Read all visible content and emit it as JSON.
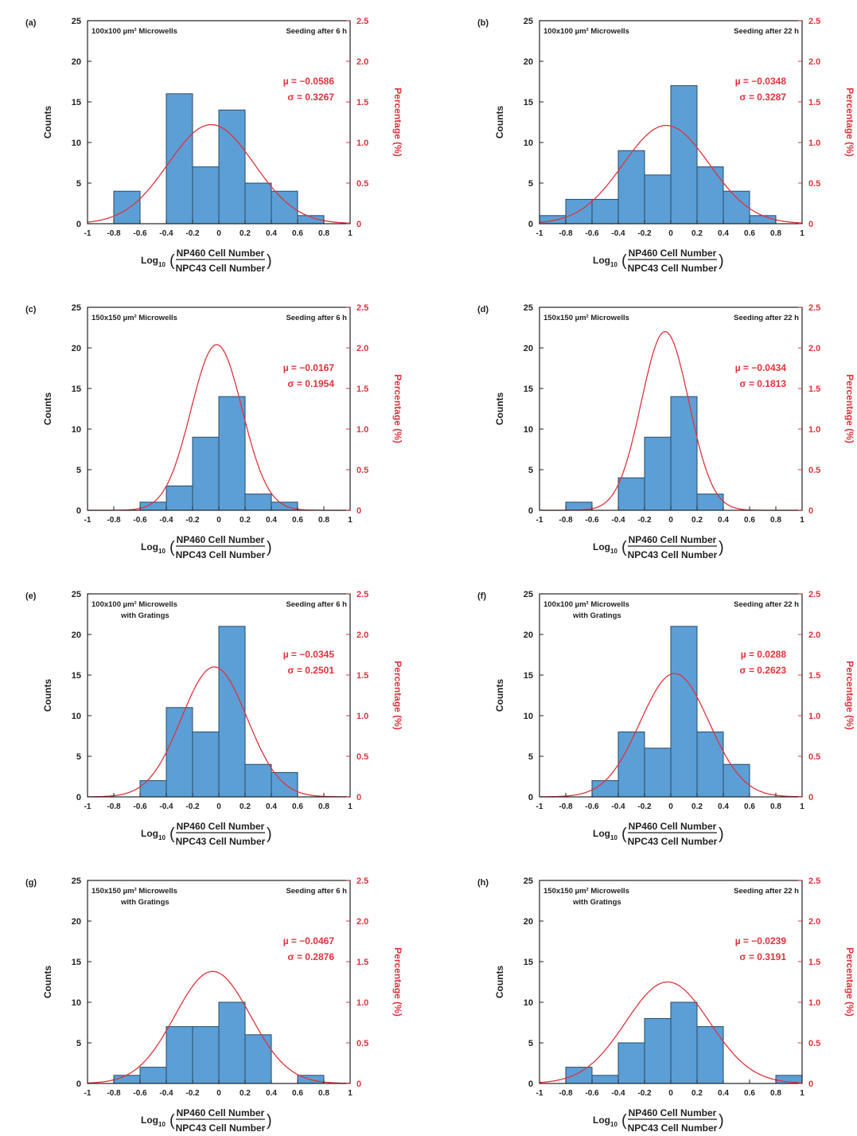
{
  "figure": {
    "count_ticks": [
      "0",
      "5",
      "10",
      "15",
      "20",
      "25"
    ],
    "percentage_ticks": [
      "0",
      "0.5",
      "1.0",
      "1.5",
      "2.0",
      "2.5"
    ],
    "x_ticks": [
      "-1",
      "-0.8",
      "-0.6",
      "-0.4",
      "-0.2",
      "0",
      "0.2",
      "0.4",
      "0.6",
      "0.8",
      "1"
    ],
    "ylabel_left": "Counts",
    "ylabel_right": "Percentage (%)",
    "xlabel_prefix": "Log",
    "xlabel_sub": "10",
    "xlabel_numerator": "NP460 Cell Number",
    "xlabel_denominator": "NPC43 Cell Number",
    "colors": {
      "bar_fill": "#5b9fd6",
      "bar_edge": "#2a4a66",
      "curve": "#e0333c",
      "axis": "#222222"
    }
  },
  "chart_data": [
    {
      "type": "bar",
      "panel": "(a)",
      "well": "100x100 µm² Microwells",
      "well_sub": "",
      "seeding": "Seeding after 6 h",
      "mu": "µ = −0.0586",
      "sigma": "σ = 0.3267",
      "bin_edges": [
        -1,
        -0.8,
        -0.6,
        -0.4,
        -0.2,
        0,
        0.2,
        0.4,
        0.6,
        0.8,
        1
      ],
      "counts": [
        0,
        4,
        0,
        16,
        7,
        14,
        5,
        4,
        1,
        0
      ],
      "fit": {
        "mean": -0.0586,
        "sd": 0.3267,
        "peak_percentage": 1.22
      },
      "xlim": [
        -1,
        1
      ],
      "ylim_counts": [
        0,
        25
      ],
      "ylim_percentage": [
        0,
        2.5
      ]
    },
    {
      "type": "bar",
      "panel": "(b)",
      "well": "100x100 µm² Microwells",
      "well_sub": "",
      "seeding": "Seeding after 22 h",
      "mu": "µ = −0.0348",
      "sigma": "σ = 0.3287",
      "bin_edges": [
        -1,
        -0.8,
        -0.6,
        -0.4,
        -0.2,
        0,
        0.2,
        0.4,
        0.6,
        0.8,
        1
      ],
      "counts": [
        1,
        3,
        3,
        9,
        6,
        17,
        7,
        4,
        1,
        0
      ],
      "fit": {
        "mean": -0.0348,
        "sd": 0.3287,
        "peak_percentage": 1.21
      },
      "xlim": [
        -1,
        1
      ],
      "ylim_counts": [
        0,
        25
      ],
      "ylim_percentage": [
        0,
        2.5
      ]
    },
    {
      "type": "bar",
      "panel": "(c)",
      "well": "150x150 µm² Microwells",
      "well_sub": "",
      "seeding": "Seeding after 6 h",
      "mu": "µ = −0.0167",
      "sigma": "σ = 0.1954",
      "bin_edges": [
        -1,
        -0.8,
        -0.6,
        -0.4,
        -0.2,
        0,
        0.2,
        0.4,
        0.6,
        0.8,
        1
      ],
      "counts": [
        0,
        0,
        1,
        3,
        9,
        14,
        2,
        1,
        0,
        0
      ],
      "fit": {
        "mean": -0.0167,
        "sd": 0.1954,
        "peak_percentage": 2.04
      },
      "xlim": [
        -1,
        1
      ],
      "ylim_counts": [
        0,
        25
      ],
      "ylim_percentage": [
        0,
        2.5
      ]
    },
    {
      "type": "bar",
      "panel": "(d)",
      "well": "150x150 µm² Microwells",
      "well_sub": "",
      "seeding": "Seeding after 22 h",
      "mu": "µ = −0.0434",
      "sigma": "σ = 0.1813",
      "bin_edges": [
        -1,
        -0.8,
        -0.6,
        -0.4,
        -0.2,
        0,
        0.2,
        0.4,
        0.6,
        0.8,
        1
      ],
      "counts": [
        0,
        1,
        0,
        4,
        9,
        14,
        2,
        0,
        0,
        0
      ],
      "fit": {
        "mean": -0.0434,
        "sd": 0.1813,
        "peak_percentage": 2.2
      },
      "xlim": [
        -1,
        1
      ],
      "ylim_counts": [
        0,
        25
      ],
      "ylim_percentage": [
        0,
        2.5
      ]
    },
    {
      "type": "bar",
      "panel": "(e)",
      "well": "100x100 µm² Microwells",
      "well_sub": "with Gratings",
      "seeding": "Seeding after 6 h",
      "mu": "µ = −0.0345",
      "sigma": "σ = 0.2501",
      "bin_edges": [
        -1,
        -0.8,
        -0.6,
        -0.4,
        -0.2,
        0,
        0.2,
        0.4,
        0.6,
        0.8,
        1
      ],
      "counts": [
        0,
        0,
        2,
        11,
        8,
        21,
        4,
        3,
        0,
        0
      ],
      "fit": {
        "mean": -0.0345,
        "sd": 0.2501,
        "peak_percentage": 1.6
      },
      "xlim": [
        -1,
        1
      ],
      "ylim_counts": [
        0,
        25
      ],
      "ylim_percentage": [
        0,
        2.5
      ]
    },
    {
      "type": "bar",
      "panel": "(f)",
      "well": "100x100 µm² Microwells",
      "well_sub": "with Gratings",
      "seeding": "Seeding after 22 h",
      "mu": "µ = 0.0288",
      "sigma": "σ = 0.2623",
      "bin_edges": [
        -1,
        -0.8,
        -0.6,
        -0.4,
        -0.2,
        0,
        0.2,
        0.4,
        0.6,
        0.8,
        1
      ],
      "counts": [
        0,
        0,
        2,
        8,
        6,
        21,
        8,
        4,
        0,
        0
      ],
      "fit": {
        "mean": 0.0288,
        "sd": 0.2623,
        "peak_percentage": 1.52
      },
      "xlim": [
        -1,
        1
      ],
      "ylim_counts": [
        0,
        25
      ],
      "ylim_percentage": [
        0,
        2.5
      ]
    },
    {
      "type": "bar",
      "panel": "(g)",
      "well": "150x150 µm² Microwells",
      "well_sub": "with Gratings",
      "seeding": "Seeding after 6 h",
      "mu": "µ = −0.0467",
      "sigma": "σ = 0.2876",
      "bin_edges": [
        -1,
        -0.8,
        -0.6,
        -0.4,
        -0.2,
        0,
        0.2,
        0.4,
        0.6,
        0.8,
        1
      ],
      "counts": [
        0,
        1,
        2,
        7,
        7,
        10,
        6,
        0,
        1,
        0
      ],
      "fit": {
        "mean": -0.0467,
        "sd": 0.2876,
        "peak_percentage": 1.38
      },
      "xlim": [
        -1,
        1
      ],
      "ylim_counts": [
        0,
        25
      ],
      "ylim_percentage": [
        0,
        2.5
      ]
    },
    {
      "type": "bar",
      "panel": "(h)",
      "well": "150x150 µm² Microwells",
      "well_sub": "with Gratings",
      "seeding": "Seeding after 22 h",
      "mu": "µ = −0.0239",
      "sigma": "σ = 0.3191",
      "bin_edges": [
        -1,
        -0.8,
        -0.6,
        -0.4,
        -0.2,
        0,
        0.2,
        0.4,
        0.6,
        0.8,
        1
      ],
      "counts": [
        0,
        2,
        1,
        5,
        8,
        10,
        7,
        0,
        0,
        1
      ],
      "fit": {
        "mean": -0.0239,
        "sd": 0.3191,
        "peak_percentage": 1.25
      },
      "xlim": [
        -1,
        1
      ],
      "ylim_counts": [
        0,
        25
      ],
      "ylim_percentage": [
        0,
        2.5
      ]
    }
  ]
}
